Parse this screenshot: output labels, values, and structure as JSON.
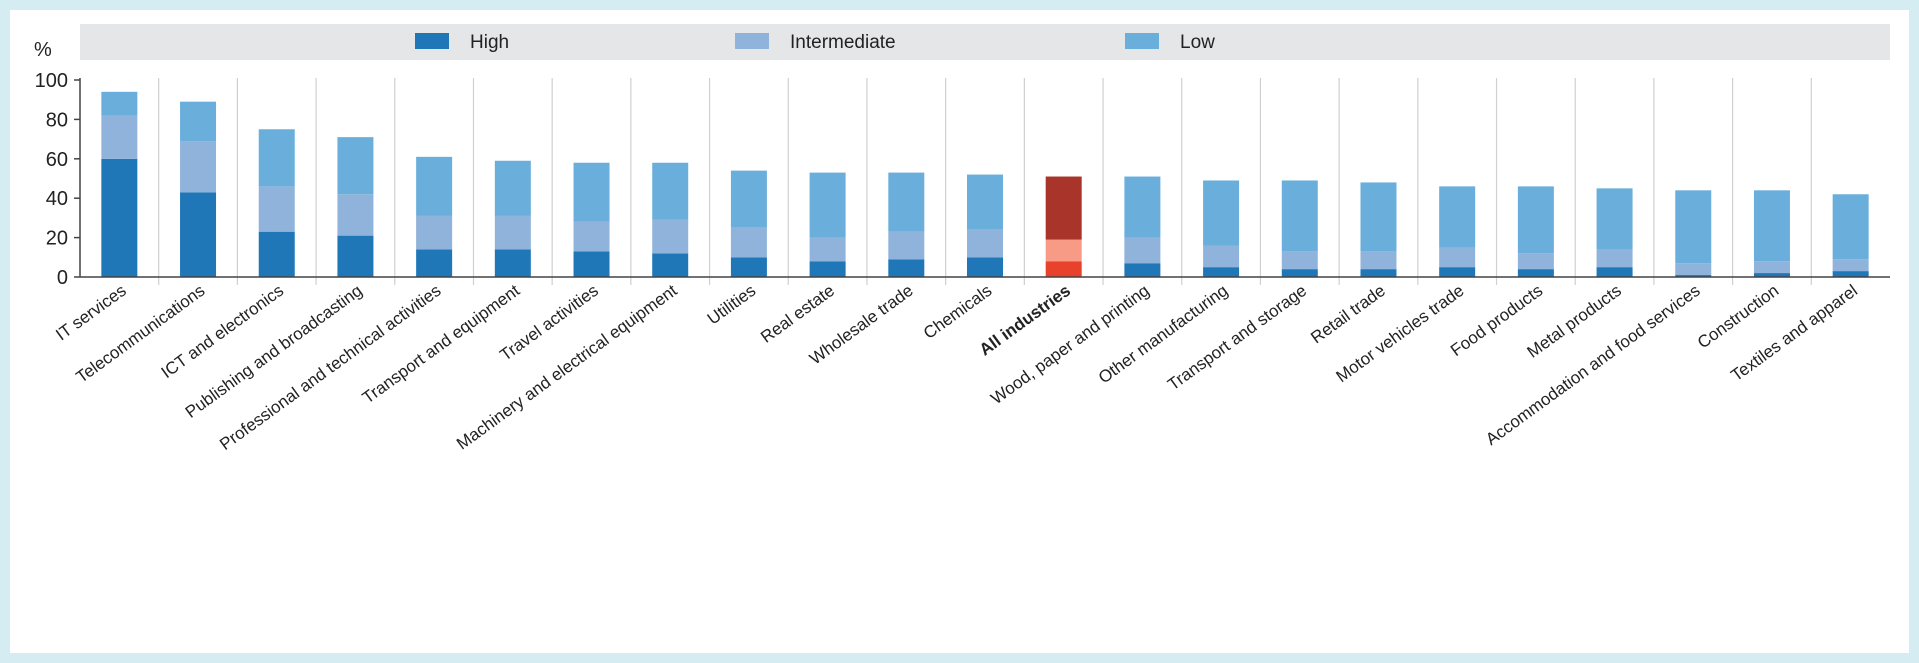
{
  "chart_data": {
    "type": "bar",
    "stacked": true,
    "ylabel": "%",
    "ylim": [
      0,
      100
    ],
    "yticks": [
      0,
      20,
      40,
      60,
      80,
      100
    ],
    "grid": "vertical separators between categories",
    "legend_position": "top",
    "categories": [
      "IT services",
      "Telecommunications",
      "ICT and electronics",
      "Publishing and broadcasting",
      "Professional and technical activities",
      "Transport and equipment",
      "Travel activities",
      "Machinery and electrical equipment",
      "Utilities",
      "Real estate",
      "Wholesale trade",
      "Chemicals",
      "All industries",
      "Wood, paper and printing",
      "Other manufacturing",
      "Transport and storage",
      "Retail trade",
      "Motor vehicles trade",
      "Food products",
      "Metal products",
      "Accommodation and food services",
      "Construction",
      "Textiles and apparel"
    ],
    "highlight_category": "All industries",
    "series": [
      {
        "name": "High",
        "color": "#1f77b8",
        "values": [
          60,
          43,
          23,
          21,
          14,
          14,
          13,
          12,
          10,
          8,
          9,
          10,
          8,
          7,
          5,
          4,
          4,
          5,
          4,
          5,
          1,
          2,
          3
        ]
      },
      {
        "name": "Intermediate",
        "color": "#8fb3da",
        "values": [
          22,
          26,
          23,
          21,
          17,
          17,
          15,
          17,
          15,
          12,
          14,
          14,
          11,
          13,
          11,
          9,
          9,
          10,
          8,
          9,
          6,
          6,
          6
        ]
      },
      {
        "name": "Low",
        "color": "#6aafdb",
        "values": [
          12,
          20,
          29,
          29,
          30,
          28,
          30,
          29,
          29,
          33,
          30,
          28,
          32,
          31,
          33,
          36,
          35,
          31,
          34,
          31,
          37,
          36,
          33
        ]
      }
    ],
    "highlight_colors": {
      "High": "#e8412c",
      "Intermediate": "#f79a86",
      "Low": "#a8342a"
    }
  }
}
